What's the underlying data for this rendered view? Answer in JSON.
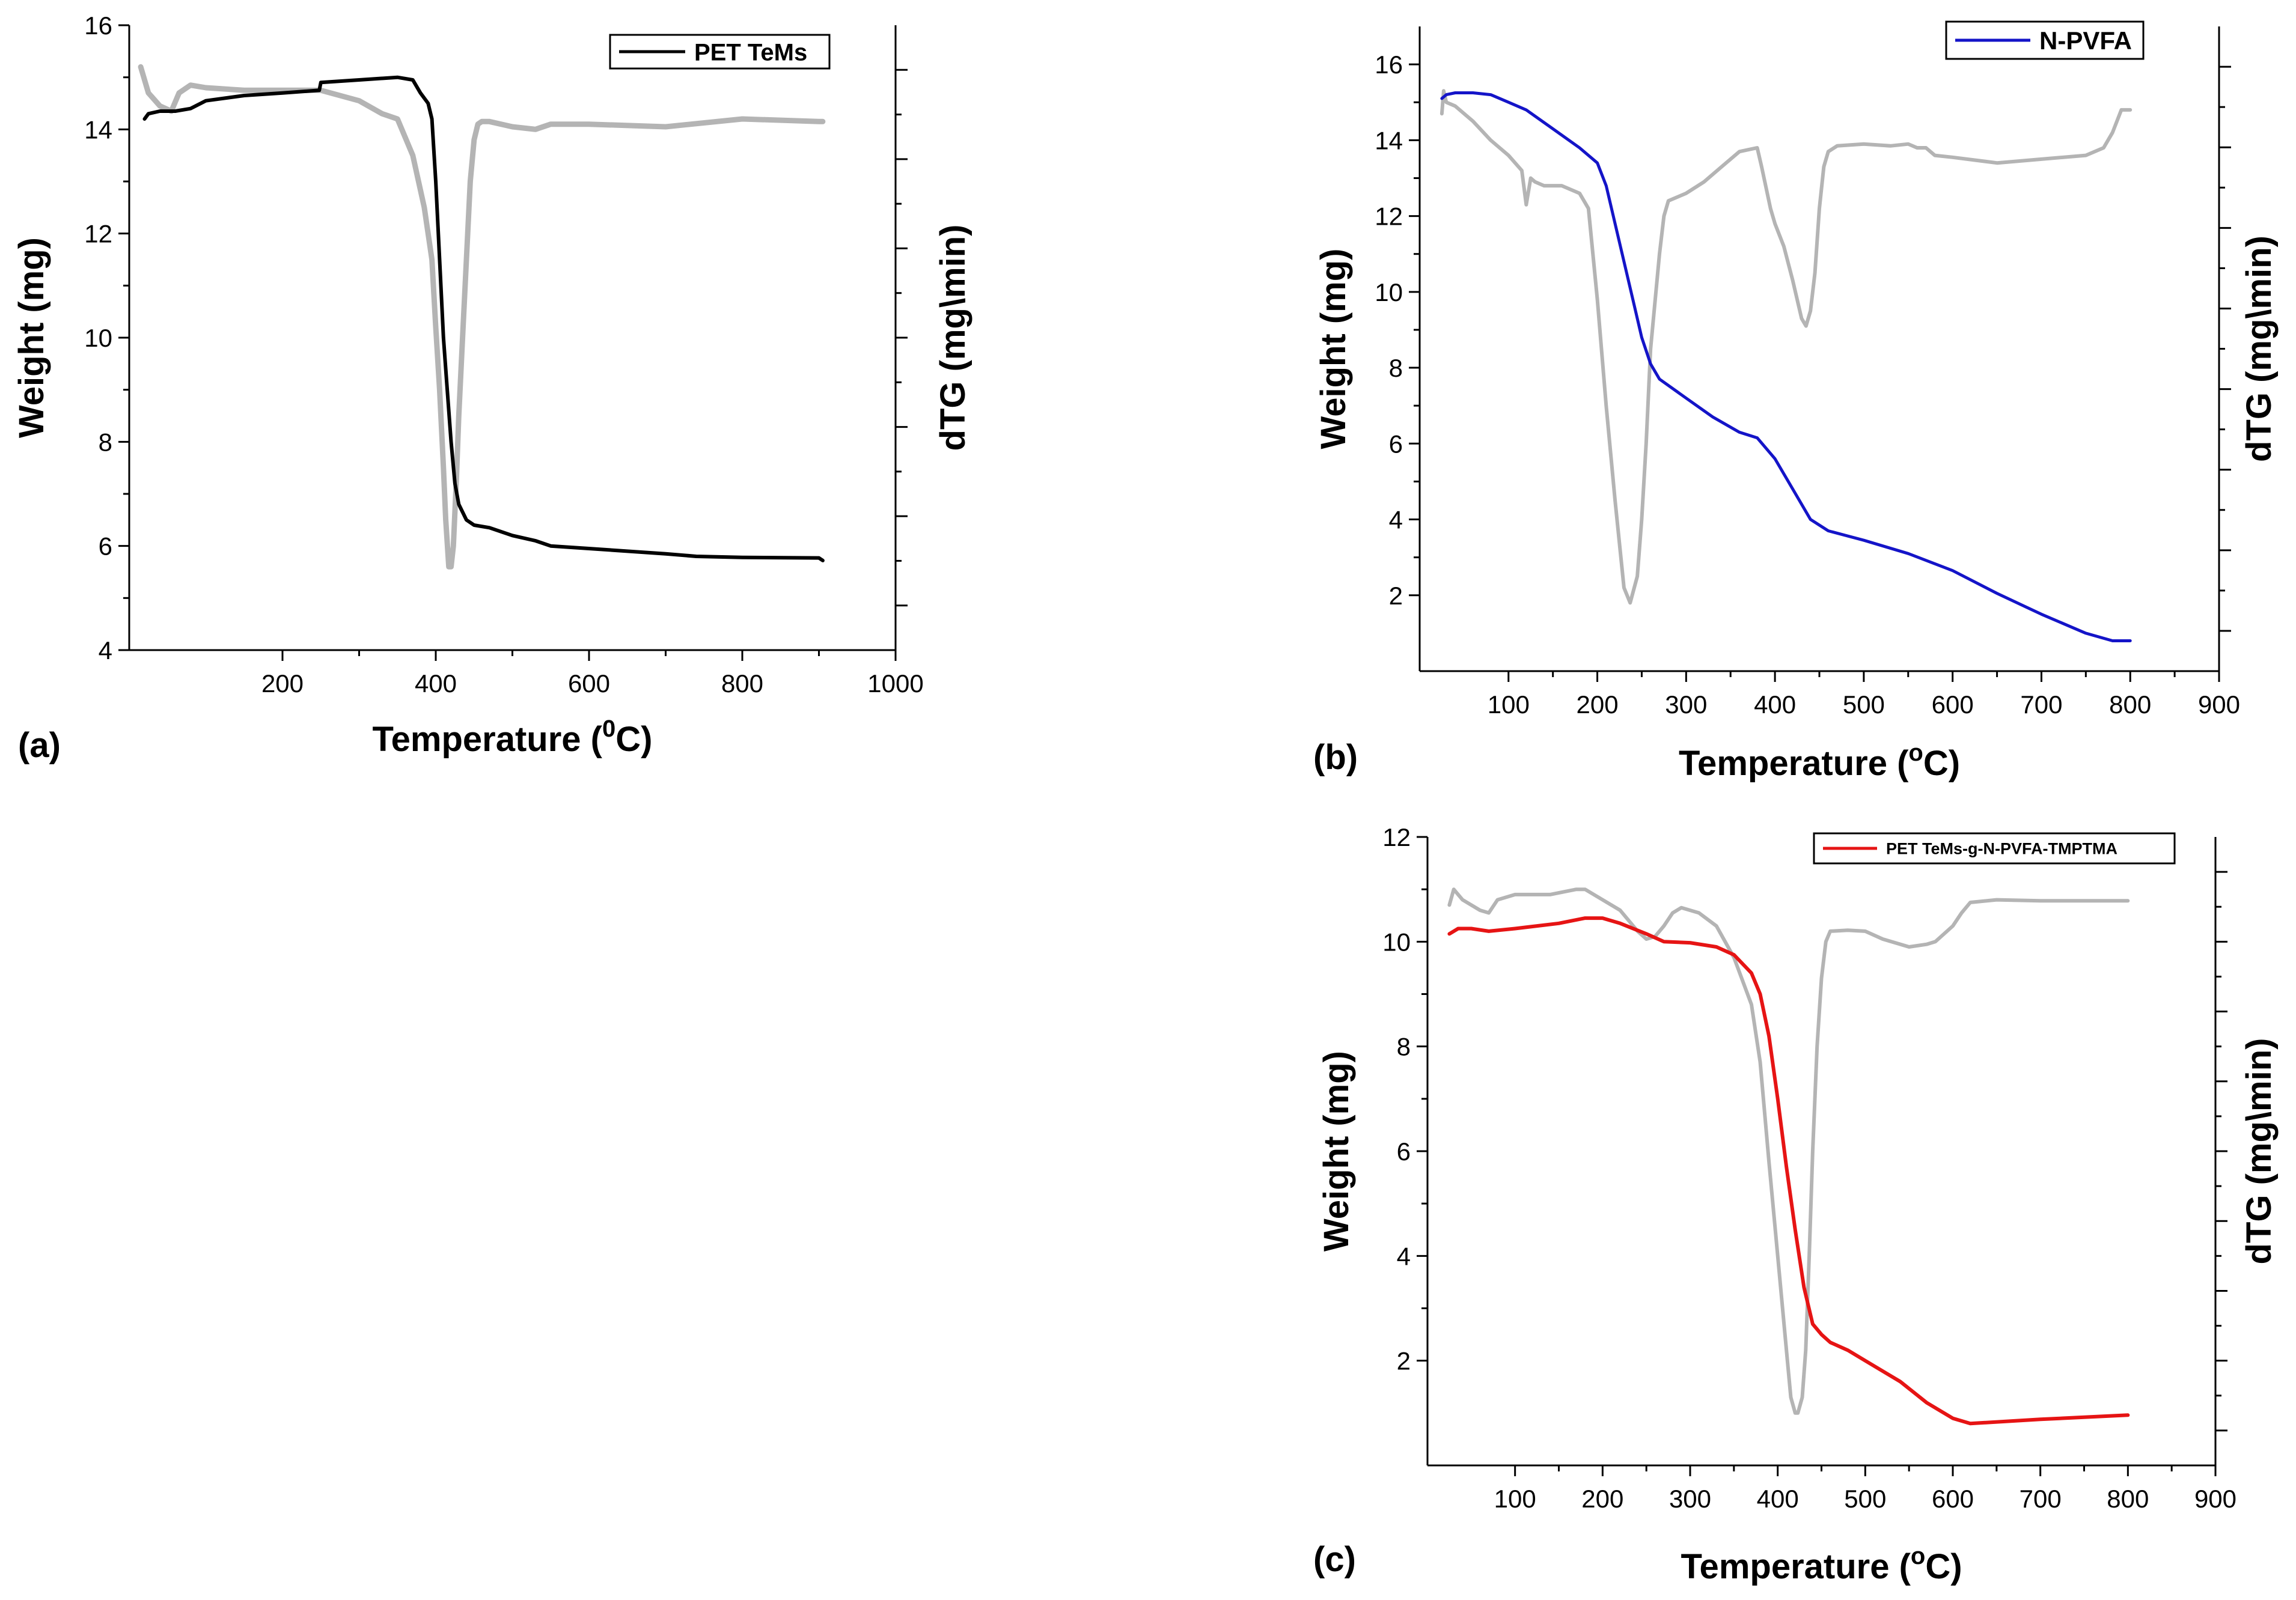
{
  "chart_data": [
    {
      "id": "a",
      "type": "line",
      "panel_label": "(a)",
      "xlabel_main": "Temperature (",
      "xlabel_sup": "0",
      "xlabel_end": "C)",
      "ylabel": "Weight (mg)",
      "y2label": "dTG (mg\\min)",
      "xlim": [
        0,
        1000
      ],
      "ylim": [
        4,
        16
      ],
      "xticks": [
        200,
        400,
        600,
        800,
        1000
      ],
      "yticks": [
        4,
        6,
        8,
        10,
        12,
        14,
        16
      ],
      "y2_ticks": 7,
      "legend": "PET TeMs",
      "series": [
        {
          "name": "PET TeMs",
          "role": "weight",
          "color": "#000000",
          "x": [
            20,
            25,
            40,
            60,
            80,
            100,
            150,
            200,
            248,
            250,
            300,
            350,
            370,
            380,
            390,
            395,
            400,
            405,
            410,
            415,
            420,
            425,
            430,
            440,
            450,
            470,
            500,
            530,
            550,
            600,
            700,
            740,
            800,
            900,
            905
          ],
          "y": [
            14.2,
            14.3,
            14.35,
            14.35,
            14.4,
            14.55,
            14.65,
            14.7,
            14.75,
            14.9,
            14.95,
            15.0,
            14.95,
            14.7,
            14.5,
            14.2,
            13.0,
            11.5,
            10.0,
            9.0,
            8.0,
            7.2,
            6.8,
            6.5,
            6.4,
            6.35,
            6.2,
            6.1,
            6.0,
            5.95,
            5.85,
            5.8,
            5.78,
            5.77,
            5.72
          ]
        },
        {
          "name": "dTG",
          "role": "derivative",
          "color": "#b4b4b4",
          "x": [
            15,
            25,
            40,
            55,
            65,
            80,
            100,
            150,
            200,
            250,
            300,
            330,
            350,
            370,
            385,
            395,
            400,
            405,
            410,
            413,
            417,
            420,
            423,
            427,
            430,
            435,
            440,
            445,
            450,
            455,
            460,
            470,
            500,
            530,
            550,
            600,
            700,
            800,
            900,
            905
          ],
          "y": [
            15.2,
            14.7,
            14.45,
            14.35,
            14.7,
            14.85,
            14.8,
            14.75,
            14.75,
            14.75,
            14.55,
            14.3,
            14.2,
            13.5,
            12.5,
            11.5,
            10.2,
            9.0,
            7.5,
            6.5,
            5.6,
            5.6,
            6.0,
            7.3,
            8.5,
            10.0,
            11.5,
            13.0,
            13.8,
            14.1,
            14.15,
            14.15,
            14.05,
            14.0,
            14.1,
            14.1,
            14.05,
            14.2,
            14.15,
            14.15
          ]
        }
      ]
    },
    {
      "id": "b",
      "type": "line",
      "panel_label": "(b)",
      "xlabel_main": "Temperature (",
      "xlabel_sup": "o",
      "xlabel_end": "C)",
      "ylabel": "Weight (mg)",
      "y2label": "dTG (mg\\min)",
      "xlim": [
        0,
        900
      ],
      "ylim": [
        0,
        17
      ],
      "xticks": [
        100,
        200,
        300,
        400,
        500,
        600,
        700,
        800,
        900
      ],
      "yticks": [
        2,
        4,
        6,
        8,
        10,
        12,
        14,
        16
      ],
      "y2_ticks": 8,
      "legend": "N-PVFA",
      "series": [
        {
          "name": "N-PVFA",
          "role": "weight",
          "color": "#1414c8",
          "x": [
            25,
            30,
            40,
            60,
            80,
            100,
            120,
            150,
            180,
            200,
            210,
            220,
            230,
            240,
            250,
            260,
            270,
            300,
            330,
            360,
            380,
            400,
            420,
            440,
            460,
            500,
            550,
            600,
            650,
            700,
            750,
            780,
            790,
            800
          ],
          "y": [
            15.1,
            15.2,
            15.25,
            15.25,
            15.2,
            15.0,
            14.8,
            14.3,
            13.8,
            13.4,
            12.8,
            11.8,
            10.8,
            9.8,
            8.8,
            8.1,
            7.7,
            7.2,
            6.7,
            6.3,
            6.15,
            5.6,
            4.8,
            4.0,
            3.7,
            3.45,
            3.1,
            2.65,
            2.05,
            1.5,
            1.0,
            0.8,
            0.8,
            0.8
          ]
        },
        {
          "name": "dTG",
          "role": "derivative",
          "color": "#b4b4b4",
          "x": [
            25,
            27,
            30,
            40,
            60,
            80,
            100,
            115,
            120,
            125,
            130,
            140,
            160,
            180,
            190,
            200,
            210,
            220,
            230,
            237,
            245,
            250,
            255,
            260,
            270,
            275,
            280,
            290,
            300,
            320,
            340,
            360,
            380,
            385,
            395,
            400,
            410,
            420,
            430,
            435,
            440,
            445,
            450,
            455,
            460,
            470,
            500,
            530,
            550,
            560,
            570,
            580,
            600,
            650,
            700,
            750,
            770,
            780,
            790,
            800
          ],
          "y": [
            14.7,
            15.3,
            15.0,
            14.9,
            14.5,
            14.0,
            13.6,
            13.2,
            12.3,
            13.0,
            12.9,
            12.8,
            12.8,
            12.6,
            12.2,
            9.8,
            7.0,
            4.5,
            2.2,
            1.8,
            2.5,
            4.0,
            6.0,
            8.5,
            11.0,
            12.0,
            12.4,
            12.5,
            12.6,
            12.9,
            13.3,
            13.7,
            13.8,
            13.3,
            12.2,
            11.8,
            11.2,
            10.3,
            9.3,
            9.1,
            9.5,
            10.5,
            12.2,
            13.3,
            13.7,
            13.85,
            13.9,
            13.85,
            13.9,
            13.8,
            13.8,
            13.6,
            13.55,
            13.4,
            13.5,
            13.6,
            13.8,
            14.2,
            14.8,
            14.8
          ]
        }
      ]
    },
    {
      "id": "c",
      "type": "line",
      "panel_label": "(c)",
      "xlabel_main": "Temperature (",
      "xlabel_sup": "o",
      "xlabel_end": "C)",
      "ylabel": "Weight (mg)",
      "y2label": "dTG (mg\\min)",
      "xlim": [
        0,
        900
      ],
      "ylim": [
        0,
        12
      ],
      "xticks": [
        100,
        200,
        300,
        400,
        500,
        600,
        700,
        800,
        900
      ],
      "yticks": [
        2,
        4,
        6,
        8,
        10,
        12
      ],
      "y2_ticks": 9,
      "legend": "PET TeMs-g-N-PVFA-TMPTMA",
      "series": [
        {
          "name": "PET TeMs-g-N-PVFA-TMPTMA",
          "role": "weight",
          "color": "#e61414",
          "x": [
            25,
            35,
            50,
            70,
            100,
            150,
            180,
            200,
            220,
            250,
            270,
            300,
            330,
            350,
            370,
            380,
            390,
            400,
            410,
            420,
            430,
            440,
            450,
            460,
            480,
            500,
            540,
            570,
            600,
            620,
            700,
            800
          ],
          "y": [
            10.15,
            10.25,
            10.25,
            10.2,
            10.25,
            10.35,
            10.45,
            10.45,
            10.35,
            10.15,
            10.0,
            9.98,
            9.9,
            9.75,
            9.4,
            9.0,
            8.2,
            7.0,
            5.7,
            4.5,
            3.4,
            2.7,
            2.5,
            2.35,
            2.2,
            2.0,
            1.6,
            1.2,
            0.9,
            0.8,
            0.88,
            0.96
          ]
        },
        {
          "name": "dTG",
          "role": "derivative",
          "color": "#b4b4b4",
          "x": [
            25,
            30,
            40,
            60,
            70,
            80,
            100,
            140,
            170,
            180,
            200,
            220,
            240,
            250,
            260,
            270,
            280,
            290,
            310,
            330,
            350,
            370,
            380,
            390,
            400,
            410,
            415,
            420,
            423,
            428,
            432,
            436,
            440,
            445,
            450,
            455,
            460,
            480,
            500,
            520,
            550,
            570,
            580,
            590,
            600,
            610,
            620,
            650,
            700,
            750,
            800
          ],
          "y": [
            10.7,
            11.0,
            10.8,
            10.6,
            10.55,
            10.8,
            10.9,
            10.9,
            11.0,
            11.0,
            10.8,
            10.6,
            10.2,
            10.05,
            10.1,
            10.3,
            10.55,
            10.65,
            10.55,
            10.3,
            9.7,
            8.8,
            7.7,
            5.8,
            4.0,
            2.2,
            1.3,
            1.0,
            1.0,
            1.3,
            2.2,
            4.0,
            6.0,
            8.0,
            9.3,
            10.0,
            10.2,
            10.22,
            10.2,
            10.05,
            9.9,
            9.95,
            10.0,
            10.15,
            10.3,
            10.55,
            10.75,
            10.8,
            10.78,
            10.78,
            10.78
          ]
        }
      ]
    }
  ]
}
